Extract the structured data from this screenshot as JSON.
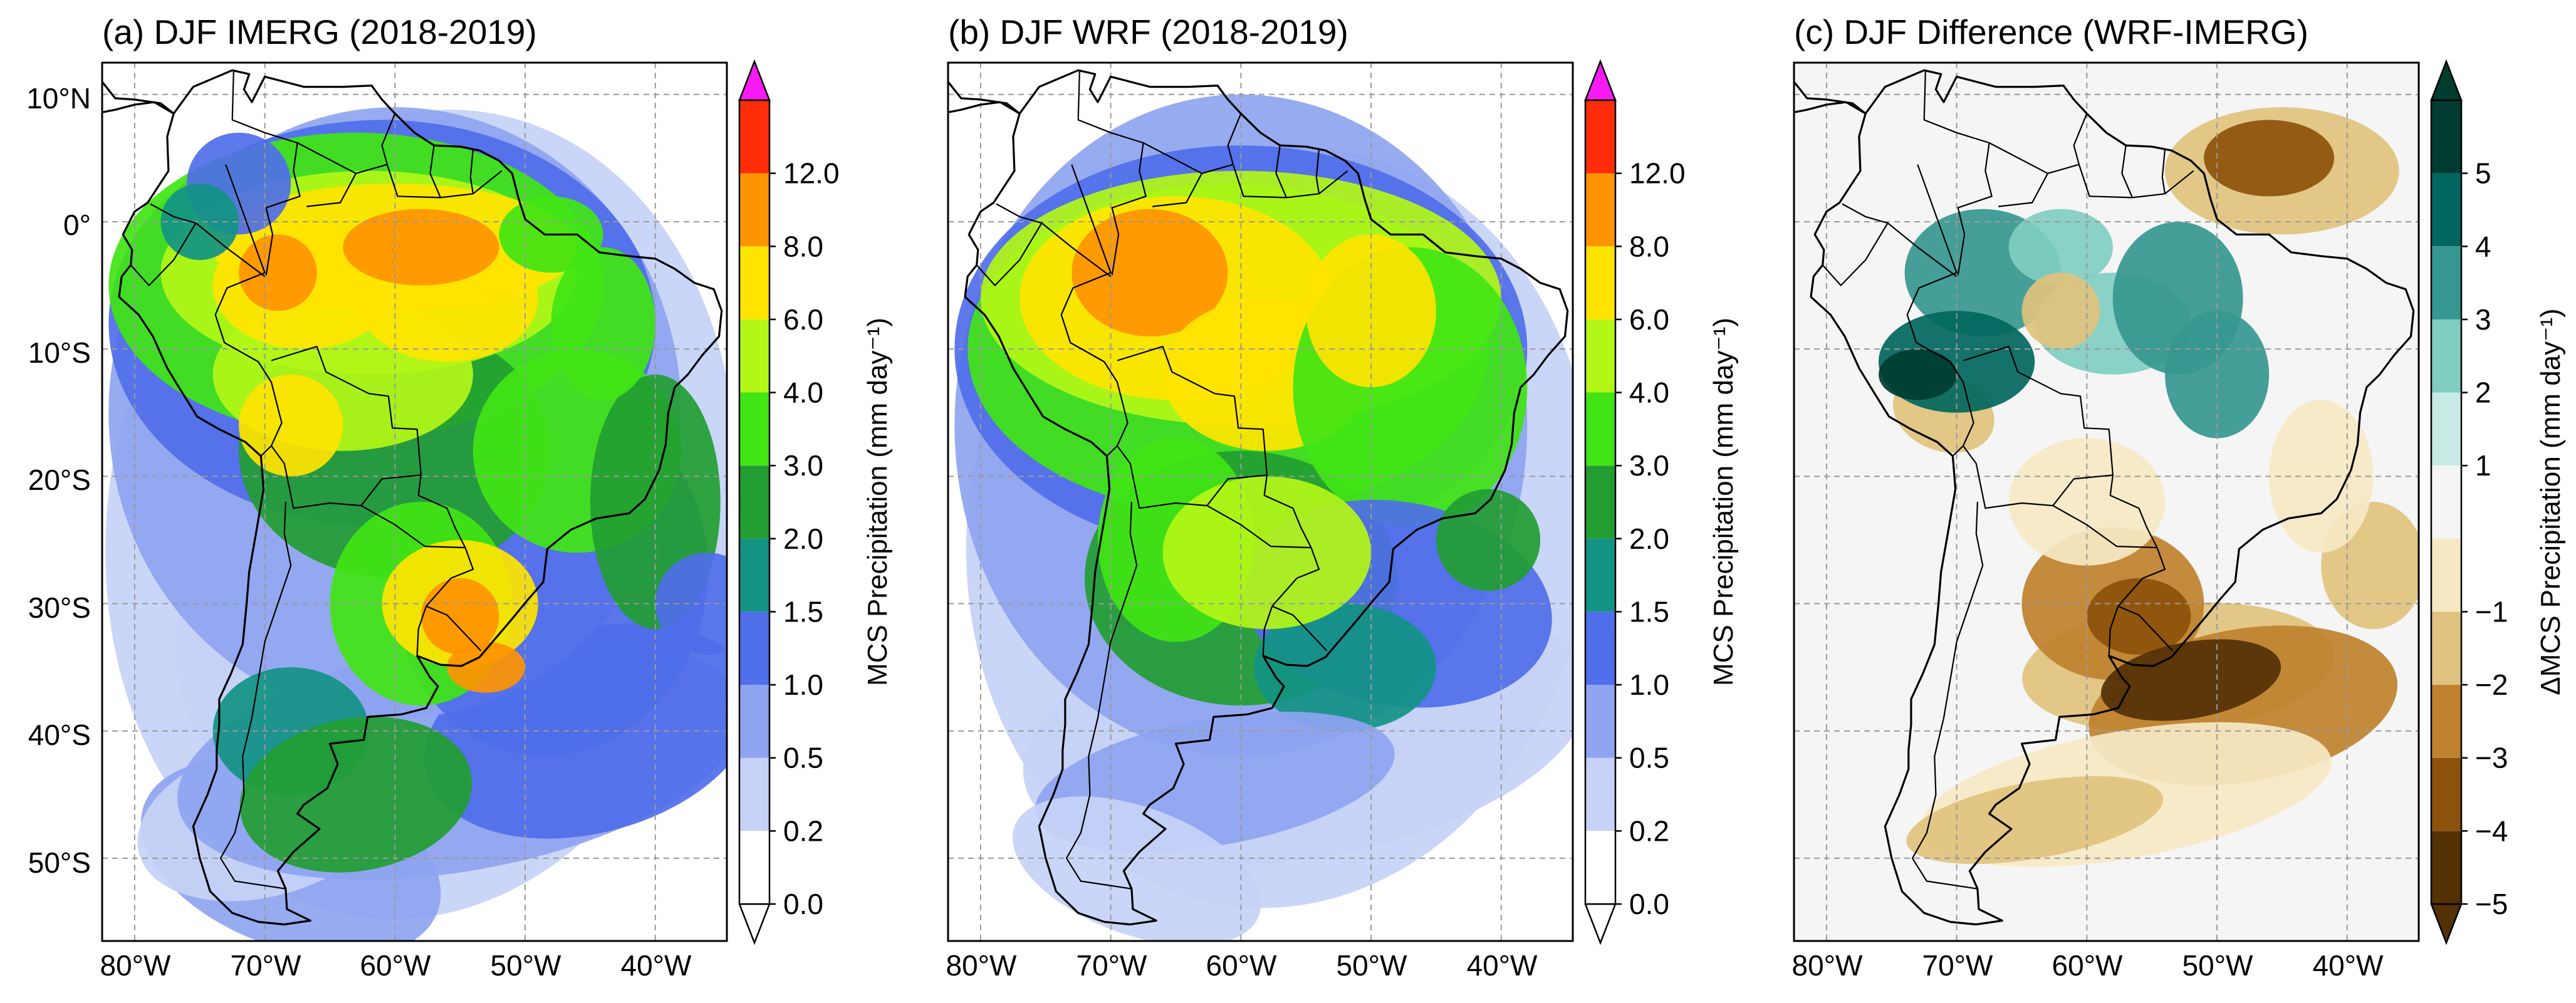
{
  "panels": [
    {
      "title": "(a) DJF IMERG (2018-2019)",
      "field": "imerg",
      "colorbar": {
        "label": "MCS Precipitation (mm day⁻¹)",
        "levels": [
          "0.0",
          "0.2",
          "0.5",
          "1.0",
          "1.5",
          "2.0",
          "3.0",
          "4.0",
          "6.0",
          "8.0",
          "12.0"
        ],
        "colors": [
          "#ffffff",
          "#c6d2f6",
          "#8ea4f0",
          "#4f6ee9",
          "#129384",
          "#229d32",
          "#41e514",
          "#b3f617",
          "#ffe400",
          "#ff9400",
          "#ff2c0a"
        ],
        "extend_max_color": "#f81af4",
        "extend_min_color": "#ffffff"
      },
      "show_lat_labels": true
    },
    {
      "title": "(b) DJF WRF (2018-2019)",
      "field": "wrf",
      "colorbar": {
        "label": "MCS Precipitation (mm day⁻¹)",
        "levels": [
          "0.0",
          "0.2",
          "0.5",
          "1.0",
          "1.5",
          "2.0",
          "3.0",
          "4.0",
          "6.0",
          "8.0",
          "12.0"
        ],
        "colors": [
          "#ffffff",
          "#c6d2f6",
          "#8ea4f0",
          "#4f6ee9",
          "#129384",
          "#229d32",
          "#41e514",
          "#b3f617",
          "#ffe400",
          "#ff9400",
          "#ff2c0a"
        ],
        "extend_max_color": "#f81af4",
        "extend_min_color": "#ffffff"
      },
      "show_lat_labels": false
    },
    {
      "title": "(c) DJF Difference (WRF-IMERG)",
      "field": "diff",
      "colorbar": {
        "label": "ΔMCS Precipitation (mm day⁻¹)",
        "levels": [
          "−5",
          "−4",
          "−3",
          "−2",
          "−1",
          "1",
          "2",
          "3",
          "4",
          "5"
        ],
        "colors": [
          "#543005",
          "#8c510a",
          "#bf812d",
          "#dfc27d",
          "#f6e8c3",
          "#f5f5f5",
          "#c7eae5",
          "#80cdc1",
          "#35978f",
          "#01665e",
          "#003c30"
        ],
        "extend_max_color": "#003c30",
        "extend_min_color": "#543005"
      },
      "show_lat_labels": false
    }
  ],
  "lat_labels": [
    "10°N",
    "0°",
    "10°S",
    "20°S",
    "30°S",
    "40°S",
    "50°S"
  ],
  "lon_labels": [
    "80°W",
    "70°W",
    "60°W",
    "50°W",
    "40°W"
  ],
  "map_extent": {
    "lon_min": -82.5,
    "lon_max": -34.5,
    "lat_min": -56.5,
    "lat_max": 12.5
  },
  "gridlines": {
    "lons": [
      -80,
      -70,
      -60,
      -50,
      -40
    ],
    "lats": [
      10,
      0,
      -10,
      -20,
      -30,
      -40,
      -50
    ]
  }
}
